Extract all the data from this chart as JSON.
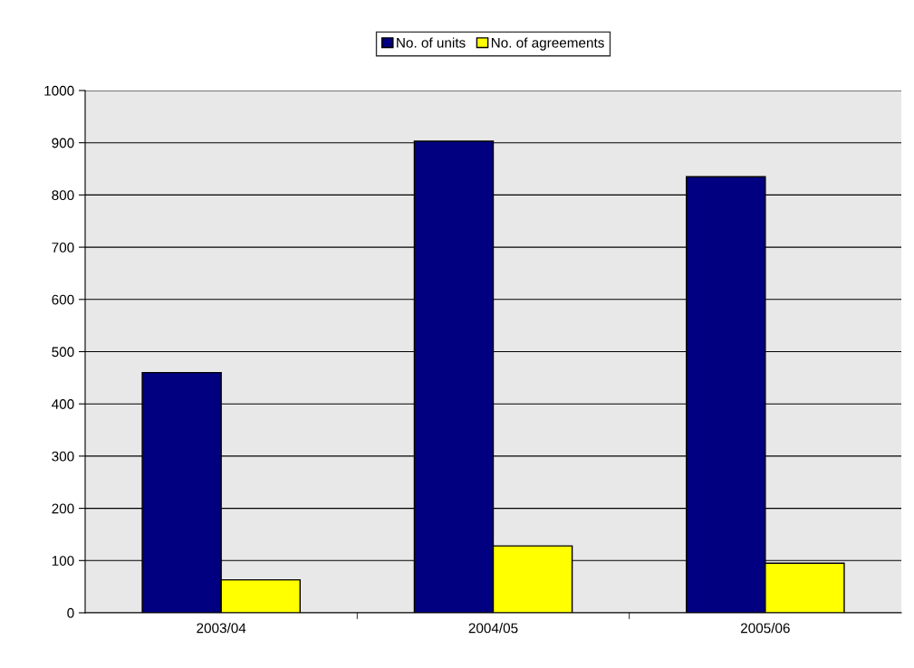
{
  "chart_data": {
    "type": "bar",
    "categories": [
      "2003/04",
      "2004/05",
      "2005/06"
    ],
    "series": [
      {
        "name": "No. of units",
        "color": "#000080",
        "values": [
          460,
          903,
          835
        ]
      },
      {
        "name": "No. of agreements",
        "color": "#ffff00",
        "values": [
          63,
          128,
          95
        ]
      }
    ],
    "ylim": [
      0,
      1000
    ],
    "yticks": [
      0,
      100,
      200,
      300,
      400,
      500,
      600,
      700,
      800,
      900,
      1000
    ],
    "grid": "y",
    "legend": "top"
  }
}
